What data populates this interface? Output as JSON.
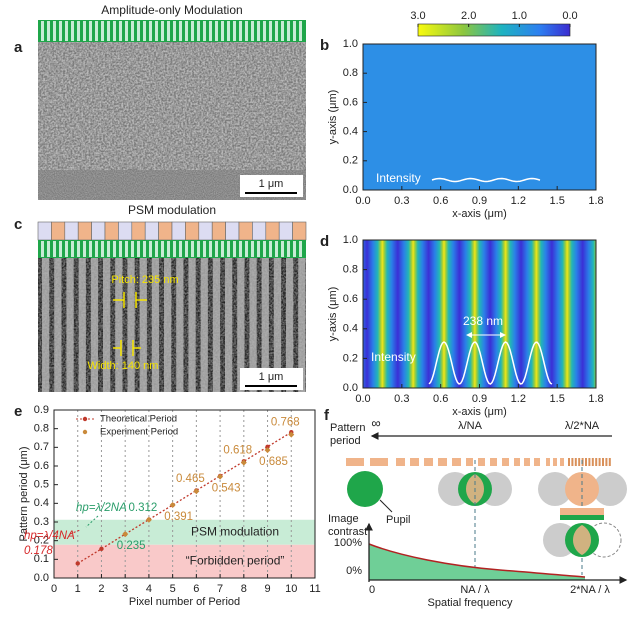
{
  "panel_a": {
    "label": "a",
    "title": "Amplitude-only  Modulation",
    "scale_bar": "1 μm"
  },
  "panel_c": {
    "label": "c",
    "title": "PSM modulation",
    "pitch": "Pitch: 235 nm",
    "width": "Width: 140 nm",
    "scale_bar": "1 μm"
  },
  "diagram_f": {
    "label": "f",
    "pattern_period": [
      "Pattern",
      "period"
    ],
    "infinity": "∞",
    "lambda_na": "λ/NA",
    "lambda_2na": "λ/2*NA",
    "pupil": "Pupil",
    "image_contrast": [
      "Image",
      "contrast"
    ],
    "contrast_100": "100%",
    "contrast_0": "0%",
    "freq_0": "0",
    "freq_na": "NA / λ",
    "freq_2na": "2*NA / λ",
    "xlabel": "Spatial frequency"
  },
  "chart_data": [
    {
      "type": "heatmap",
      "panel_label": "b",
      "xlabel": "x-axis (μm)",
      "ylabel": "y-axis (μm)",
      "xlim": [
        0,
        1.8
      ],
      "ylim": [
        0,
        1
      ],
      "xticks": [
        {
          "value": 0,
          "label": "0.0"
        },
        0.3,
        0.6,
        0.9,
        1.2,
        1.5,
        1.8
      ],
      "yticks": [
        {
          "value": 0,
          "label": "0.0"
        },
        0.2,
        0.4,
        0.6,
        0.8,
        {
          "value": 1,
          "label": "1.0"
        }
      ],
      "colorbar": {
        "lim": [
          3,
          0
        ],
        "ticks": [
          {
            "value": 3,
            "label": "3.0"
          },
          {
            "value": 2,
            "label": "2.0"
          },
          {
            "value": 1,
            "label": "1.0"
          },
          {
            "value": 0,
            "label": "0.0"
          }
        ]
      },
      "annotations": [
        "Intensity"
      ]
    },
    {
      "type": "heatmap",
      "panel_label": "d",
      "xlabel": "x-axis (μm)",
      "ylabel": "y-axis (μm)",
      "xlim": [
        0,
        1.8
      ],
      "ylim": [
        0,
        1
      ],
      "xticks": [
        {
          "value": 0,
          "label": "0.0"
        },
        0.3,
        0.6,
        0.9,
        1.2,
        1.5,
        1.8
      ],
      "yticks": [
        {
          "value": 0,
          "label": "0.0"
        },
        0.2,
        0.4,
        0.6,
        0.8,
        {
          "value": 1,
          "label": "1.0"
        }
      ],
      "annotations": [
        "Intensity",
        "238 nm"
      ]
    },
    {
      "type": "line",
      "panel_label": "e",
      "xlabel": "Pixel number of Period",
      "ylabel": "Pattern period (μm)",
      "xlim": [
        0,
        11
      ],
      "ylim": [
        0,
        0.9
      ],
      "xticks": [
        0,
        1,
        2,
        3,
        4,
        5,
        6,
        7,
        8,
        9,
        10,
        11
      ],
      "yticks": [
        {
          "value": 0,
          "label": "0.0"
        },
        0.1,
        0.2,
        0.3,
        0.4,
        0.5,
        0.6,
        0.7,
        0.8,
        0.9
      ],
      "grid": true,
      "legend": "upper left",
      "bands": [
        {
          "label": "PSM modulation",
          "ylim": [
            0.178,
            0.312
          ],
          "color": "#c8ecd6"
        },
        {
          "label": "“Forbidden period”",
          "ylim": [
            0,
            0.178
          ],
          "color": "#f9c9c9"
        }
      ],
      "series": [
        {
          "name": "Theoretical Period",
          "color": "#c0392b",
          "x": [
            1,
            2,
            3,
            4,
            5,
            6,
            7,
            8,
            9,
            10
          ],
          "values": [
            0.078,
            0.156,
            0.235,
            0.313,
            0.391,
            0.469,
            0.547,
            0.625,
            0.703,
            0.781
          ]
        },
        {
          "name": "Experiment Period",
          "color": "#c98a3b",
          "x": [
            3,
            4,
            5,
            6,
            7,
            8,
            9,
            10
          ],
          "values": [
            0.235,
            0.312,
            0.391,
            0.465,
            0.543,
            0.618,
            0.685,
            0.768
          ],
          "label_colors": [
            "#2a9d6a",
            "#2a9d6a",
            "#c98a3b",
            "#c98a3b",
            "#c98a3b",
            "#c98a3b",
            "#c98a3b",
            "#c98a3b"
          ]
        }
      ],
      "annotations": [
        {
          "text": "hp=λ/2NA",
          "color": "#2a9d6a"
        },
        {
          "text": "hp=λ/4NA",
          "color": "#d62728"
        },
        {
          "text": "0.178",
          "color": "#d62728"
        }
      ]
    }
  ]
}
